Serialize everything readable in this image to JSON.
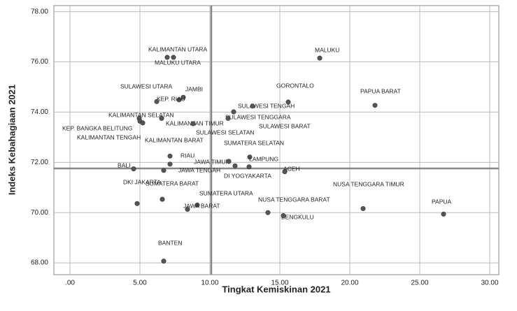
{
  "chart_data": {
    "type": "scatter",
    "x_label": "Tingkat Kemiskinan 2021",
    "y_label": "Indeks Kebahagiaan 2021",
    "xlim": [
      -1.15,
      30.65
    ],
    "ylim": [
      67.53,
      78.24
    ],
    "xticks": [
      {
        "value": 0,
        "label": ".00"
      },
      {
        "value": 5,
        "label": "5.00"
      },
      {
        "value": 10,
        "label": "10.00"
      },
      {
        "value": 15,
        "label": "15.00"
      },
      {
        "value": 20,
        "label": "20.00"
      },
      {
        "value": 25,
        "label": "25.00"
      },
      {
        "value": 30,
        "label": "30.00"
      }
    ],
    "yticks": [
      {
        "value": 68,
        "label": "68.00"
      },
      {
        "value": 70,
        "label": "70.00"
      },
      {
        "value": 72,
        "label": "72.00"
      },
      {
        "value": 74,
        "label": "74.00"
      },
      {
        "value": 76,
        "label": "76.00"
      },
      {
        "value": 78,
        "label": "78.00"
      }
    ],
    "grid": true,
    "color": "#555555",
    "reference_lines": {
      "x": 10.1,
      "y": 71.76
    },
    "labels": [
      "MALUKU",
      "KALIMANTAN UTARA",
      "MALUKU UTARA",
      "JAMBI",
      "SULAWESI UTARA",
      "KEP. RIAU",
      "GORONTALO",
      "PAPUA BARAT",
      "SULAWESI TENGAH",
      "SULAWESI TENGGARA",
      "KALIMANTAN SELATAN",
      "KALIMANTAN TIMUR",
      "SULAWESI BARAT",
      "KEP. BANGKA BELITUNG",
      "KALIMANTAN TENGAH",
      "SULAWESI SELATAN",
      "KALIMANTAN BARAT",
      "SUMATERA SELATAN",
      "RIAU",
      "JAWA TIMUR",
      "LAMPUNG",
      "BALI",
      "JAWA TENGAH",
      "DI YOGYAKARTA",
      "ACEH",
      "DKI JAKARTA",
      "SUMATERA BARAT",
      "SUMATERA UTARA",
      "JAWA BARAT",
      "NUSA TENGGARA BARAT",
      "BENGKULU",
      "NUSA TENGGARA TIMUR",
      "PAPUA",
      "BANTEN"
    ],
    "x": [
      17.85,
      7.4,
      6.95,
      8.1,
      7.8,
      6.2,
      15.6,
      21.8,
      13.05,
      11.7,
      4.95,
      6.55,
      11.3,
      5.0,
      5.2,
      8.8,
      7.15,
      12.85,
      7.15,
      11.35,
      11.8,
      4.55,
      6.7,
      12.8,
      15.35,
      4.8,
      6.6,
      9.1,
      8.4,
      14.15,
      15.25,
      20.95,
      26.7,
      6.7
    ],
    "values": [
      76.15,
      76.18,
      76.18,
      74.59,
      74.49,
      74.42,
      74.4,
      74.27,
      74.24,
      74.01,
      73.75,
      73.75,
      73.75,
      73.64,
      73.57,
      73.54,
      72.25,
      72.21,
      71.93,
      72.04,
      71.86,
      71.74,
      71.68,
      71.82,
      71.63,
      70.36,
      70.53,
      70.3,
      70.13,
      70.0,
      69.88,
      70.16,
      69.94,
      68.07
    ]
  }
}
